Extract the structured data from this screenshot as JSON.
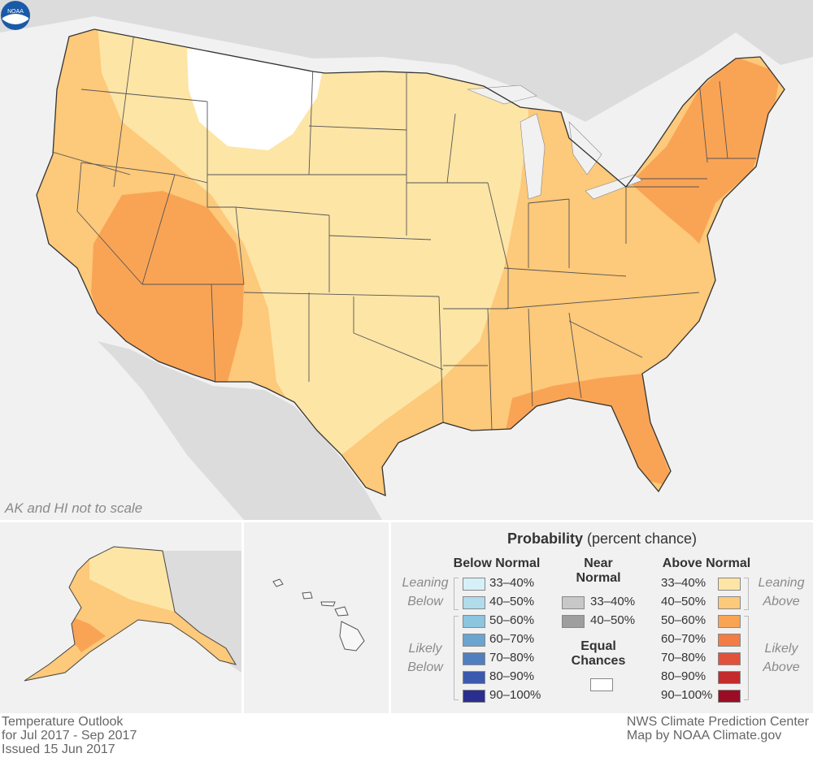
{
  "map": {
    "scale_note": "AK and HI not to scale",
    "logo_text": "NOAA",
    "colors": {
      "background": "#f1f1f1",
      "land": "#dcdcdc",
      "ec": "#ffffff",
      "a33": "#fde5a6",
      "a40": "#fdc97a",
      "a50": "#f9a455"
    }
  },
  "legend": {
    "title": "Probability",
    "title_suffix": "(percent chance)",
    "below": {
      "heading": "Below Normal",
      "leaning": "Leaning Below",
      "likely": "Likely Below",
      "items": [
        {
          "label": "33–40%",
          "color": "#d6f0f8"
        },
        {
          "label": "40–50%",
          "color": "#b0dcec"
        },
        {
          "label": "50–60%",
          "color": "#8bc5df"
        },
        {
          "label": "60–70%",
          "color": "#6aa4cf"
        },
        {
          "label": "70–80%",
          "color": "#4f7fbf"
        },
        {
          "label": "80–90%",
          "color": "#3b5aad"
        },
        {
          "label": "90–100%",
          "color": "#2a2f8f"
        }
      ]
    },
    "near": {
      "heading_1": "Near",
      "heading_2": "Normal",
      "items": [
        {
          "label": "33–40%",
          "color": "#c8c8c8"
        },
        {
          "label": "40–50%",
          "color": "#9e9e9e"
        }
      ],
      "equal_1": "Equal",
      "equal_2": "Chances",
      "equal_color": "#ffffff"
    },
    "above": {
      "heading": "Above Normal",
      "leaning": "Leaning Above",
      "likely": "Likely Above",
      "items": [
        {
          "label": "33–40%",
          "color": "#fde5a6"
        },
        {
          "label": "40–50%",
          "color": "#fdc97a"
        },
        {
          "label": "50–60%",
          "color": "#f9a455"
        },
        {
          "label": "60–70%",
          "color": "#f27d45"
        },
        {
          "label": "70–80%",
          "color": "#e2513a"
        },
        {
          "label": "80–90%",
          "color": "#c42b2b"
        },
        {
          "label": "90–100%",
          "color": "#9b0d25"
        }
      ]
    }
  },
  "footer": {
    "left": [
      "Temperature Outlook",
      "for Jul 2017 - Sep 2017",
      "Issued 15 Jun 2017"
    ],
    "right": [
      "NWS Climate Prediction Center",
      "Map by NOAA Climate.gov"
    ]
  }
}
